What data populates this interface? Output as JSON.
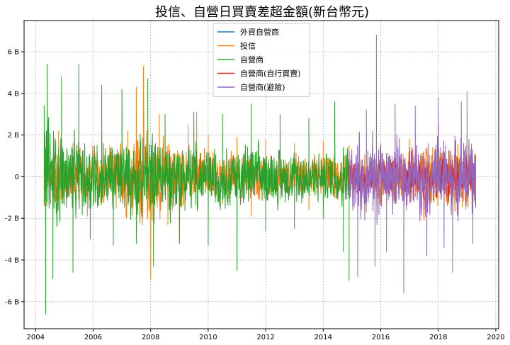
{
  "chart_data": {
    "type": "line",
    "title": "投信、自營日買賣差超金額(新台幣元)",
    "xlabel": "",
    "ylabel": "",
    "xlim": [
      2003.6,
      2020.1
    ],
    "ylim": [
      -7.3,
      7.5
    ],
    "x_ticks": [
      2004,
      2006,
      2008,
      2010,
      2012,
      2014,
      2016,
      2018,
      2020
    ],
    "y_ticks": [
      -6,
      -4,
      -2,
      0,
      2,
      4,
      6
    ],
    "y_tick_labels": [
      "-6 B",
      "-4 B",
      "-2 B",
      "0",
      "2 B",
      "4 B",
      "6 B"
    ],
    "y_unit": "B (billion NTD)",
    "grid": true,
    "legend_position": "top-center",
    "series": [
      {
        "name": "外資自營商",
        "color": "#1f77b4",
        "x": [],
        "y": []
      },
      {
        "name": "投信",
        "color": "#ff7f0e",
        "x": [
          2004.3,
          2004.8,
          2005.3,
          2005.8,
          2006.3,
          2006.8,
          2007.2,
          2007.5,
          2007.75,
          2008.0,
          2008.3,
          2008.6,
          2009.0,
          2009.3,
          2009.6,
          2010.0,
          2010.5,
          2011.0,
          2011.5,
          2012.0,
          2012.5,
          2013.0,
          2013.5,
          2014.0,
          2014.5,
          2014.9,
          2015.5,
          2016.0,
          2016.5,
          2017.0,
          2017.5,
          2018.0,
          2018.5,
          2019.0,
          2019.3
        ],
        "y": [
          -1.4,
          2.2,
          1.6,
          -1.9,
          2.0,
          -1.5,
          2.2,
          4.3,
          5.3,
          -4.9,
          3.0,
          -2.3,
          -3.2,
          2.5,
          3.1,
          2.0,
          -1.3,
          1.9,
          -1.9,
          1.8,
          -1.1,
          1.6,
          -1.6,
          1.7,
          -1.1,
          1.5,
          -1.7,
          1.6,
          -1.3,
          1.8,
          -2.1,
          2.5,
          -1.9,
          2.0,
          -1.5
        ],
        "amplitude": [
          1.5,
          1.7,
          1.4,
          1.5,
          1.6,
          1.6,
          1.9,
          2.4,
          2.6,
          2.4,
          2.0,
          1.8,
          1.6,
          1.5,
          1.4,
          1.2,
          1.1,
          1.2,
          1.2,
          1.1,
          1.0,
          1.1,
          1.0,
          1.1,
          1.0,
          1.0,
          1.2,
          1.2,
          1.2,
          1.3,
          1.5,
          1.6,
          1.7,
          1.5,
          1.3
        ]
      },
      {
        "name": "自營商",
        "color": "#2ca02c",
        "x": [
          2004.3,
          2004.35,
          2004.4,
          2004.6,
          2004.9,
          2005.3,
          2005.5,
          2005.9,
          2006.3,
          2006.7,
          2007.0,
          2007.5,
          2007.9,
          2008.1,
          2008.5,
          2009.0,
          2009.5,
          2010.0,
          2010.5,
          2011.0,
          2011.5,
          2012.0,
          2012.5,
          2013.0,
          2013.5,
          2014.0,
          2014.4,
          2014.7,
          2014.9
        ],
        "y": [
          3.4,
          -6.6,
          5.4,
          -4.9,
          4.8,
          -4.6,
          5.4,
          -3.0,
          4.4,
          -3.3,
          4.2,
          -3.2,
          4.7,
          -4.3,
          3.0,
          -3.2,
          3.1,
          -3.3,
          3.0,
          -4.5,
          3.5,
          -2.6,
          3.0,
          -2.5,
          2.8,
          -2.0,
          3.6,
          -3.6,
          -5.0
        ],
        "amplitude": [
          3.0,
          3.2,
          3.0,
          2.6,
          2.2,
          2.0,
          2.0,
          1.9,
          1.8,
          1.8,
          1.9,
          2.0,
          2.2,
          2.3,
          2.0,
          1.8,
          1.7,
          1.6,
          1.5,
          1.6,
          1.6,
          1.5,
          1.4,
          1.3,
          1.3,
          1.2,
          1.4,
          1.6,
          1.6
        ]
      },
      {
        "name": "自營商(自行買賣)",
        "color": "#d62728",
        "x": [
          2014.9,
          2015.5,
          2016.0,
          2016.5,
          2017.0,
          2017.5,
          2018.0,
          2018.5,
          2019.0,
          2019.3
        ],
        "y": [
          1.1,
          -1.2,
          1.5,
          -1.3,
          1.4,
          -1.6,
          2.5,
          -1.8,
          1.6,
          -1.4
        ],
        "amplitude": [
          0.9,
          1.0,
          1.0,
          1.0,
          1.1,
          1.1,
          1.2,
          1.2,
          1.2,
          1.1
        ]
      },
      {
        "name": "自營商(避險)",
        "color": "#9467bd",
        "x": [
          2014.9,
          2015.2,
          2015.5,
          2015.8,
          2015.85,
          2016.2,
          2016.5,
          2016.8,
          2017.2,
          2017.6,
          2018.0,
          2018.2,
          2018.5,
          2018.8,
          2019.0,
          2019.2,
          2019.3
        ],
        "y": [
          1.0,
          -4.8,
          3.2,
          -4.3,
          6.8,
          -3.6,
          3.5,
          -5.6,
          3.4,
          -3.8,
          3.8,
          -3.4,
          -4.6,
          3.6,
          4.1,
          -3.2,
          1.0
        ],
        "amplitude": [
          1.6,
          2.0,
          1.9,
          2.0,
          2.1,
          1.8,
          1.8,
          1.8,
          1.7,
          1.8,
          1.9,
          1.9,
          2.0,
          2.0,
          2.1,
          2.0,
          1.8
        ]
      }
    ]
  }
}
